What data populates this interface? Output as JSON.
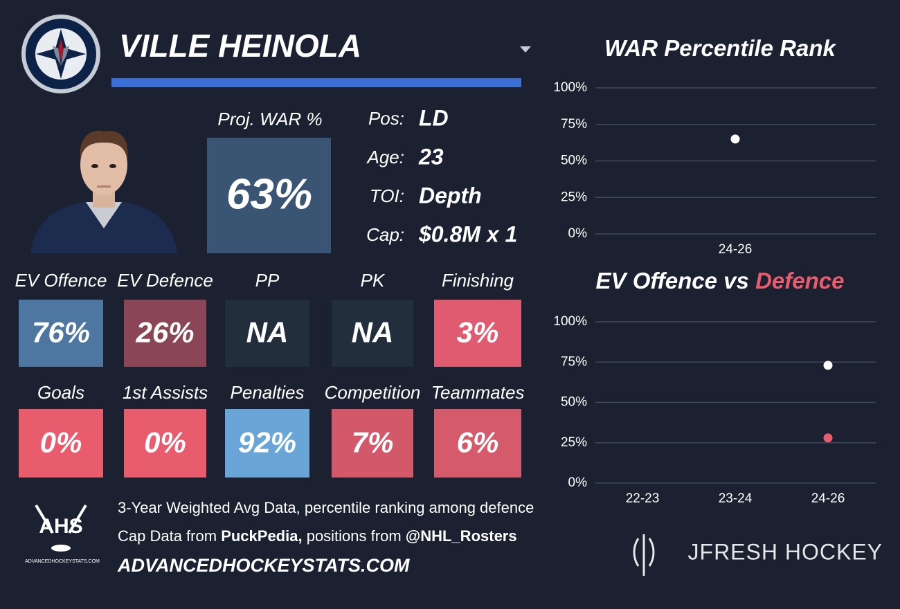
{
  "player": {
    "name": "VILLE HEINOLA"
  },
  "summary": {
    "proj_war_label": "Proj. WAR %",
    "proj_war": "63%",
    "proj_war_color": "#3a5573",
    "info": [
      {
        "label": "Pos:",
        "value": "LD"
      },
      {
        "label": "Age:",
        "value": "23"
      },
      {
        "label": "TOI:",
        "value": "Depth"
      },
      {
        "label": "Cap:",
        "value": "$0.8M x 1"
      }
    ]
  },
  "tiles": [
    {
      "label": "EV Offence",
      "value": "76%",
      "color": "#4d77a0"
    },
    {
      "label": "EV Defence",
      "value": "26%",
      "color": "#8a4556"
    },
    {
      "label": "PP",
      "value": "NA",
      "color": "#232e3d"
    },
    {
      "label": "PK",
      "value": "NA",
      "color": "#232e3d"
    },
    {
      "label": "Finishing",
      "value": "3%",
      "color": "#e05b6f"
    },
    {
      "label": "Goals",
      "value": "0%",
      "color": "#e85c6e"
    },
    {
      "label": "1st Assists",
      "value": "0%",
      "color": "#e85c6e"
    },
    {
      "label": "Penalties",
      "value": "92%",
      "color": "#6aa5d8"
    },
    {
      "label": "Competition",
      "value": "7%",
      "color": "#d2586a"
    },
    {
      "label": "Teammates",
      "value": "6%",
      "color": "#d45a6c"
    }
  ],
  "footer": {
    "note": "3-Year Weighted Avg Data, percentile ranking among defence",
    "credits": [
      "Cap Data from",
      "PuckPedia,",
      "positions from",
      "@NHL_Rosters"
    ],
    "site": "ADVANCEDHOCKEYSTATS.COM",
    "logo": "AHS",
    "logo_caption": "ADVANCEDHOCKEYSTATS.COM",
    "brand": "JFRESH HOCKEY"
  },
  "chart_data": [
    {
      "type": "scatter",
      "title": "WAR Percentile Rank",
      "categories": [
        "24-26"
      ],
      "series": [
        {
          "color": "#ffffff",
          "values": [
            65
          ]
        }
      ],
      "ylim": [
        0,
        100
      ],
      "yticks": [
        {
          "value": 0,
          "label": "0%"
        },
        {
          "value": 25,
          "label": "25%"
        },
        {
          "value": 50,
          "label": "50%"
        },
        {
          "value": 75,
          "label": "75%"
        },
        {
          "value": 100,
          "label": "100%"
        }
      ],
      "grid": true
    },
    {
      "type": "scatter",
      "title": "EV Offence vs",
      "categories": [
        "22-23",
        "23-24",
        "24-26"
      ],
      "series": [
        {
          "color": "#ffffff",
          "values": [
            null,
            null,
            73
          ]
        },
        {
          "name": "Defence",
          "color": "#e85c6e",
          "values": [
            null,
            null,
            28
          ]
        }
      ],
      "ylim": [
        0,
        100
      ],
      "yticks": [
        {
          "value": 0,
          "label": "0%"
        },
        {
          "value": 25,
          "label": "25%"
        },
        {
          "value": 50,
          "label": "50%"
        },
        {
          "value": 75,
          "label": "75%"
        },
        {
          "value": 100,
          "label": "100%"
        }
      ],
      "grid": true
    }
  ]
}
